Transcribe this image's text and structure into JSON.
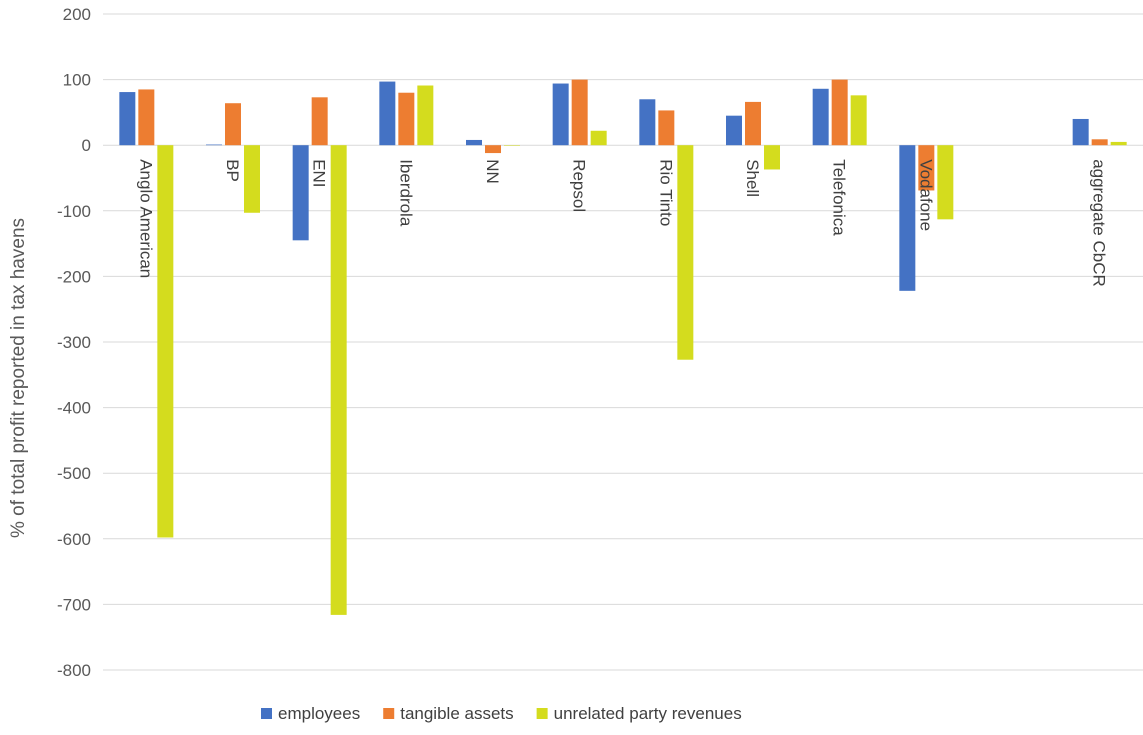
{
  "chart_data": {
    "type": "bar",
    "title": "",
    "xlabel": "",
    "ylabel": "% of total profit reported in tax havens",
    "ylim": [
      -800,
      200
    ],
    "yticks": [
      200,
      100,
      0,
      -100,
      -200,
      -300,
      -400,
      -500,
      -600,
      -700,
      -800
    ],
    "grid": true,
    "legend_position": "bottom",
    "categories": [
      "Anglo American",
      "BP",
      "ENI",
      "Iberdrola",
      "NN",
      "Repsol",
      "Rio Tinto",
      "Shell",
      "Telefonica",
      "Vodafone",
      "",
      "aggregate CbCR"
    ],
    "series": [
      {
        "name": "employees",
        "color": "#4472C4",
        "values": [
          81,
          1,
          -145,
          97,
          8,
          94,
          70,
          45,
          86,
          -222,
          null,
          40
        ]
      },
      {
        "name": "tangible assets",
        "color": "#ED7D31",
        "values": [
          85,
          64,
          73,
          80,
          -12,
          100,
          53,
          66,
          100,
          -69,
          null,
          9
        ]
      },
      {
        "name": "unrelated party revenues",
        "color": "#D4DC1E",
        "values": [
          -598,
          -103,
          -716,
          91,
          0,
          22,
          -327,
          -37,
          76,
          -113,
          null,
          5
        ]
      }
    ]
  }
}
